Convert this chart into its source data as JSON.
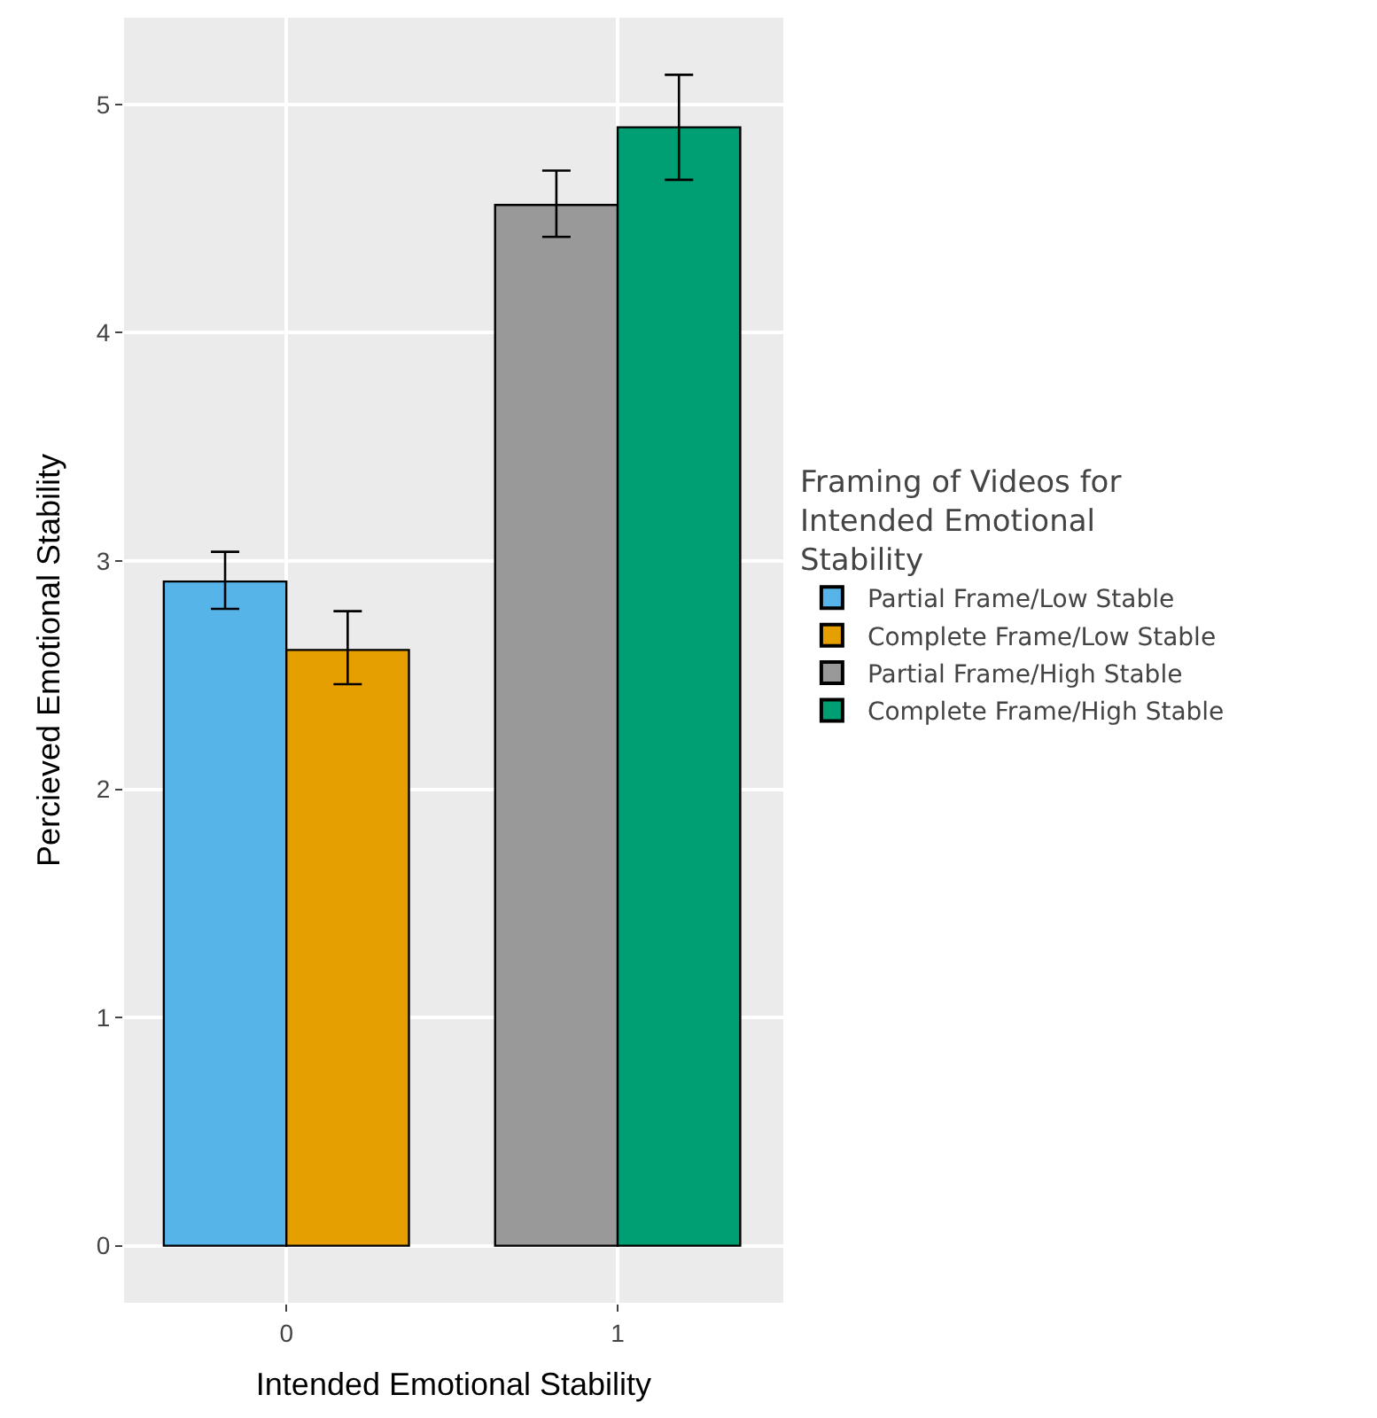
{
  "chart_data": {
    "type": "bar",
    "xlabel": "Intended Emotional Stability",
    "ylabel": "Percieved Emotional Stability",
    "legend_title": "Framing of Videos for Intended Emotional Stability",
    "categories": [
      "0",
      "1"
    ],
    "series": [
      {
        "name": "Partial Frame/Low Stable",
        "color": "#56b4e9",
        "values": [
          2.91,
          null
        ],
        "errors": [
          [
            2.79,
            3.04
          ],
          null
        ]
      },
      {
        "name": "Complete Frame/Low Stable",
        "color": "#e69f00",
        "values": [
          2.61,
          null
        ],
        "errors": [
          [
            2.46,
            2.78
          ],
          null
        ]
      },
      {
        "name": "Partial Frame/High Stable",
        "color": "#999999",
        "values": [
          null,
          4.56
        ],
        "errors": [
          null,
          [
            4.42,
            4.71
          ]
        ]
      },
      {
        "name": "Complete Frame/High Stable",
        "color": "#009e73",
        "values": [
          null,
          4.9
        ],
        "errors": [
          null,
          [
            4.67,
            5.13
          ]
        ]
      }
    ],
    "ylim": [
      -0.25,
      5.38
    ],
    "yticks": [
      0,
      1,
      2,
      3,
      4,
      5
    ],
    "grid": true,
    "legend": "right"
  }
}
